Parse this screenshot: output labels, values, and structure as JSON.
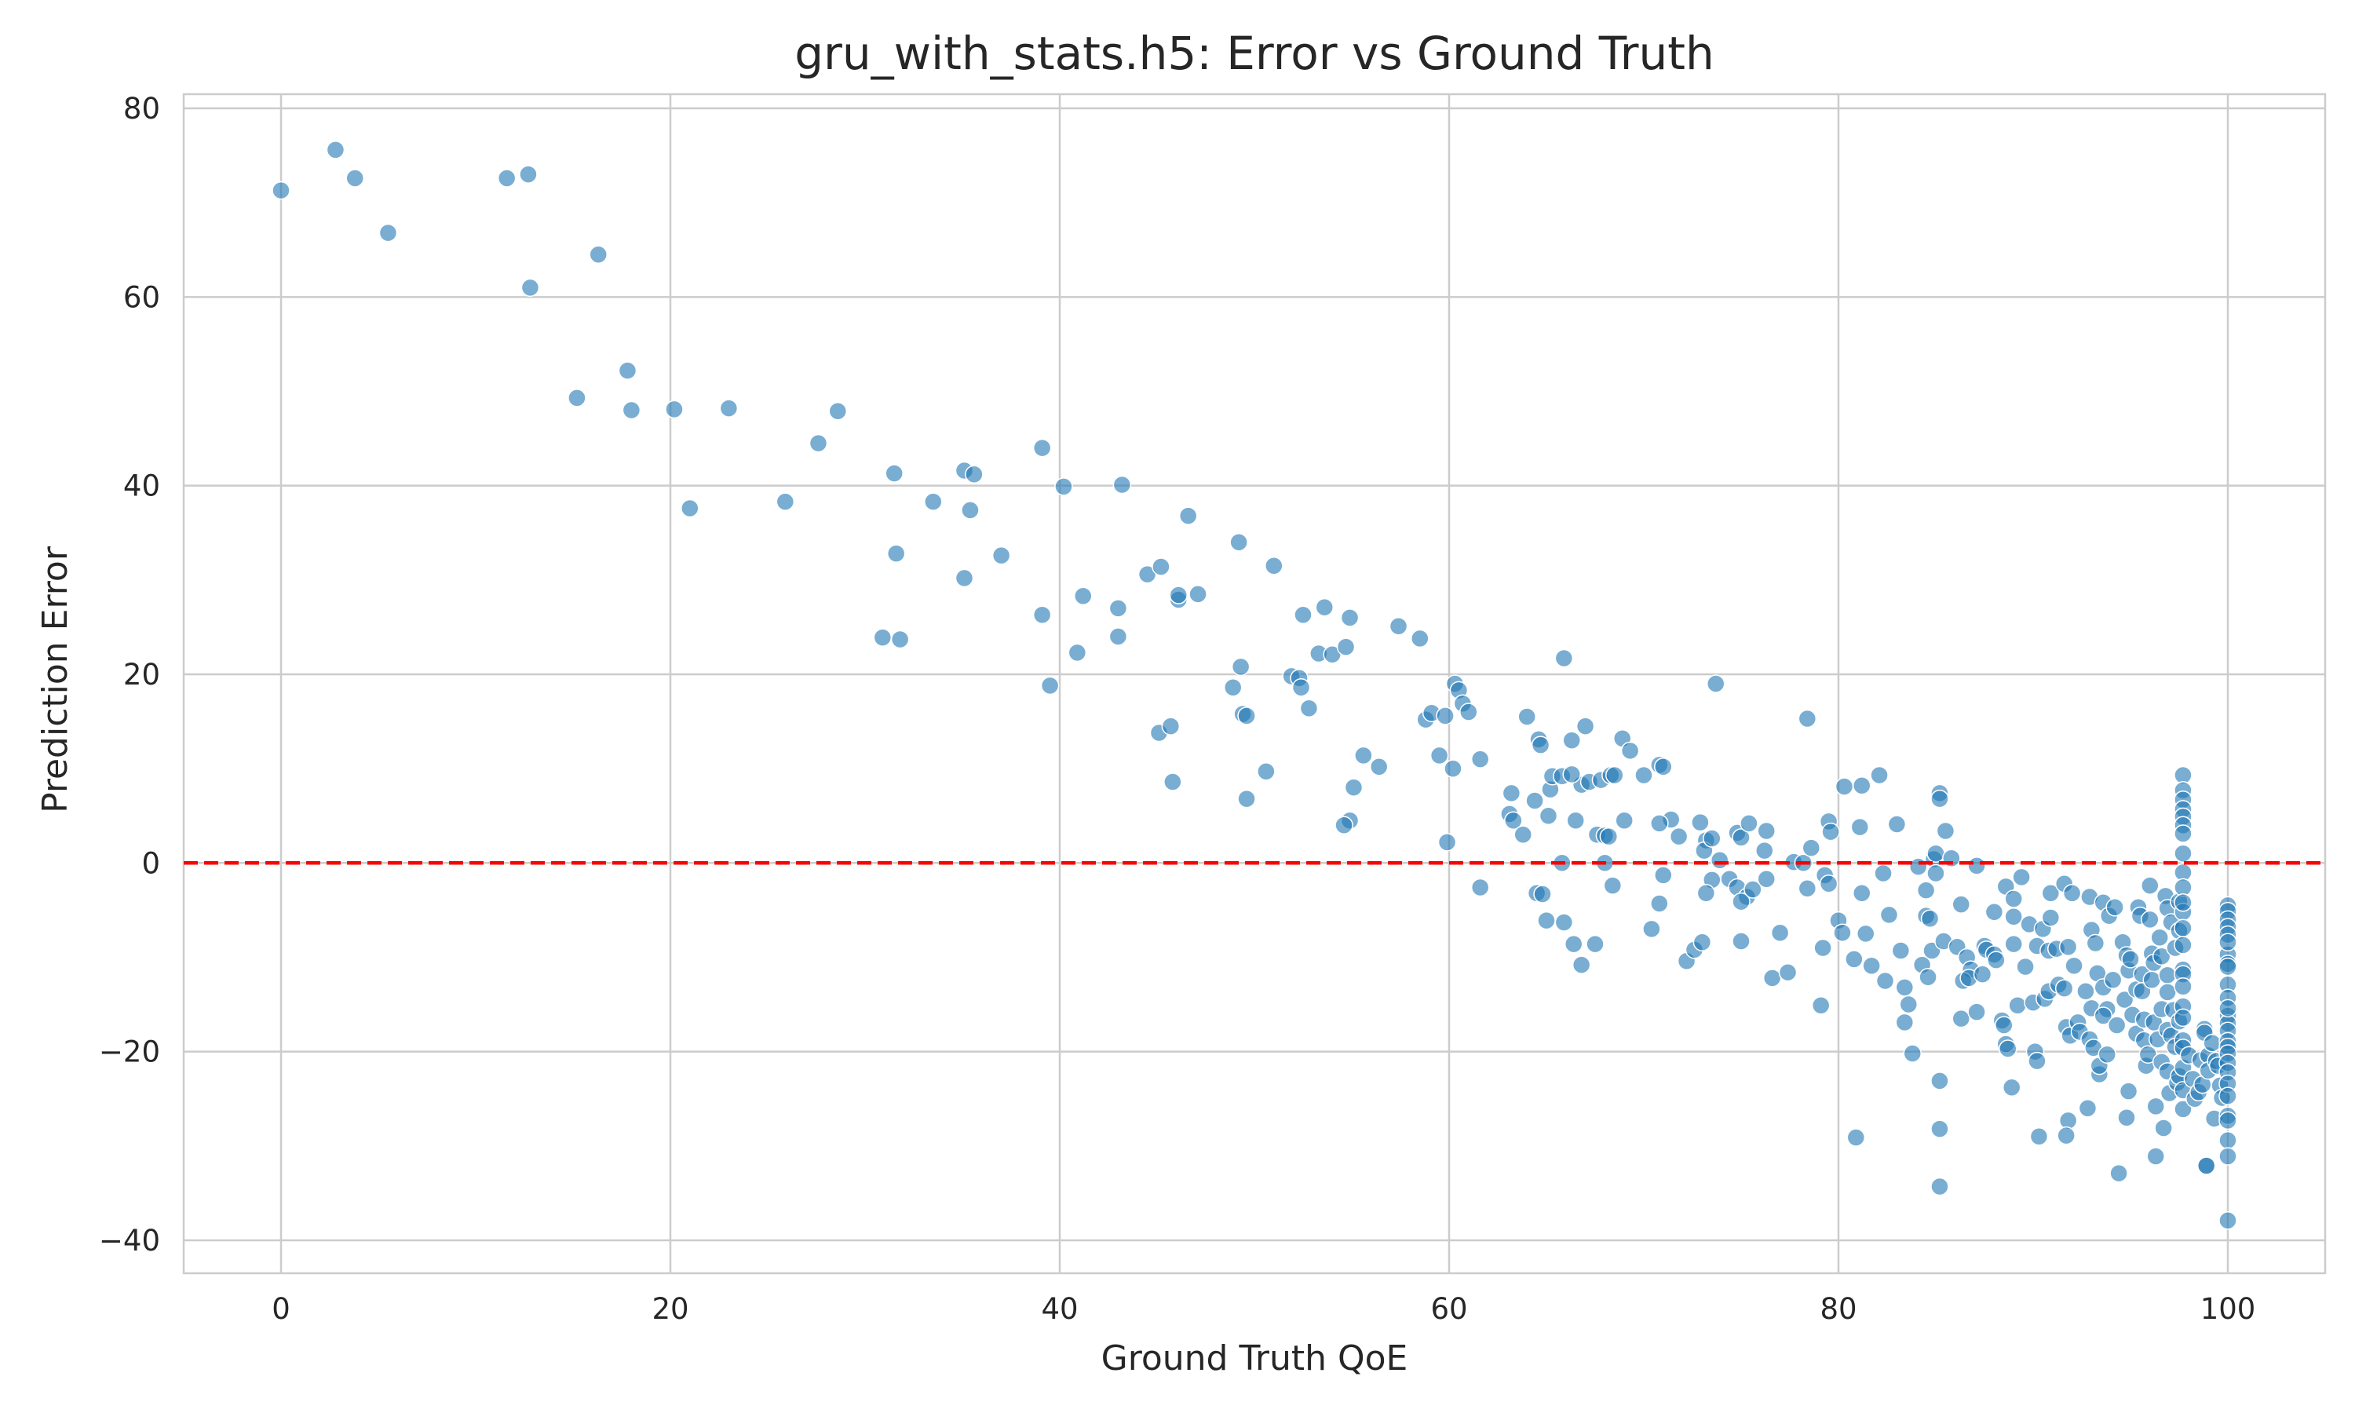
{
  "chart_data": {
    "type": "scatter",
    "title": "gru_with_stats.h5: Error vs Ground Truth",
    "xlabel": "Ground Truth QoE",
    "ylabel": "Prediction Error",
    "xlim": [
      -5,
      105
    ],
    "ylim": [
      -43.5,
      81.5
    ],
    "xticks": [
      0,
      20,
      40,
      60,
      80,
      100
    ],
    "yticks": [
      -40,
      -20,
      0,
      20,
      40,
      60,
      80
    ],
    "xtick_labels": [
      "0",
      "20",
      "40",
      "60",
      "80",
      "100"
    ],
    "ytick_labels": [
      "−40",
      "−20",
      "0",
      "20",
      "40",
      "60",
      "80"
    ],
    "grid": true,
    "reference_line": {
      "y": 0,
      "style": "dashed",
      "color": "#ff0000"
    },
    "point_color": "#1f77b4",
    "points": [
      [
        0,
        71.3
      ],
      [
        2.8,
        75.6
      ],
      [
        3.8,
        72.6
      ],
      [
        5.5,
        66.8
      ],
      [
        11.6,
        72.6
      ],
      [
        12.7,
        73.0
      ],
      [
        12.8,
        61.0
      ],
      [
        16.3,
        64.5
      ],
      [
        15.2,
        49.3
      ],
      [
        17.8,
        52.2
      ],
      [
        18.0,
        48.0
      ],
      [
        20.2,
        48.1
      ],
      [
        23.0,
        48.2
      ],
      [
        21.0,
        37.6
      ],
      [
        27.6,
        44.5
      ],
      [
        28.6,
        47.9
      ],
      [
        25.9,
        38.3
      ],
      [
        31.5,
        41.3
      ],
      [
        33.5,
        38.3
      ],
      [
        35.1,
        41.6
      ],
      [
        35.6,
        41.2
      ],
      [
        35.4,
        37.4
      ],
      [
        31.6,
        32.8
      ],
      [
        35.1,
        30.2
      ],
      [
        37.0,
        32.6
      ],
      [
        30.9,
        23.9
      ],
      [
        31.8,
        23.7
      ],
      [
        39.1,
        44.0
      ],
      [
        40.2,
        39.9
      ],
      [
        43.2,
        40.1
      ],
      [
        46.6,
        36.8
      ],
      [
        39.1,
        26.3
      ],
      [
        39.5,
        18.8
      ],
      [
        41.2,
        28.3
      ],
      [
        40.9,
        22.3
      ],
      [
        43.0,
        27.0
      ],
      [
        43.0,
        24.0
      ],
      [
        44.5,
        30.6
      ],
      [
        45.2,
        31.4
      ],
      [
        46.1,
        27.9
      ],
      [
        46.1,
        28.4
      ],
      [
        47.1,
        28.5
      ],
      [
        45.1,
        13.8
      ],
      [
        45.7,
        14.5
      ],
      [
        45.8,
        8.6
      ],
      [
        49.2,
        34.0
      ],
      [
        51.0,
        31.5
      ],
      [
        49.3,
        20.8
      ],
      [
        48.9,
        18.6
      ],
      [
        49.4,
        15.8
      ],
      [
        49.6,
        15.6
      ],
      [
        49.6,
        6.8
      ],
      [
        50.6,
        9.7
      ],
      [
        51.9,
        19.8
      ],
      [
        52.3,
        19.6
      ],
      [
        52.4,
        18.6
      ],
      [
        52.5,
        26.3
      ],
      [
        53.6,
        27.1
      ],
      [
        53.3,
        22.2
      ],
      [
        54.0,
        22.1
      ],
      [
        54.7,
        22.9
      ],
      [
        54.9,
        26.0
      ],
      [
        52.8,
        16.4
      ],
      [
        55.6,
        11.4
      ],
      [
        55.1,
        8.0
      ],
      [
        56.4,
        10.2
      ],
      [
        54.9,
        4.5
      ],
      [
        54.6,
        4.0
      ],
      [
        57.4,
        25.1
      ],
      [
        58.5,
        23.8
      ],
      [
        58.8,
        15.2
      ],
      [
        59.1,
        15.9
      ],
      [
        59.8,
        15.6
      ],
      [
        60.3,
        19.0
      ],
      [
        60.5,
        18.3
      ],
      [
        60.7,
        16.9
      ],
      [
        61.0,
        16.0
      ],
      [
        59.5,
        11.4
      ],
      [
        61.6,
        11.0
      ],
      [
        60.2,
        10.0
      ],
      [
        59.9,
        2.2
      ],
      [
        61.6,
        -2.6
      ],
      [
        63.2,
        7.4
      ],
      [
        63.1,
        5.2
      ],
      [
        63.3,
        4.5
      ],
      [
        63.8,
        3.0
      ],
      [
        64.0,
        15.5
      ],
      [
        64.6,
        13.1
      ],
      [
        64.7,
        12.5
      ],
      [
        64.4,
        6.6
      ],
      [
        65.2,
        7.8
      ],
      [
        65.3,
        9.2
      ],
      [
        65.1,
        5.0
      ],
      [
        64.5,
        -3.2
      ],
      [
        64.8,
        -3.3
      ],
      [
        65.0,
        -6.1
      ],
      [
        65.9,
        21.7
      ],
      [
        66.3,
        13.0
      ],
      [
        66.5,
        4.5
      ],
      [
        67.0,
        14.5
      ],
      [
        66.8,
        8.3
      ],
      [
        65.8,
        9.2
      ],
      [
        66.3,
        9.4
      ],
      [
        67.2,
        8.6
      ],
      [
        67.8,
        8.8
      ],
      [
        68.3,
        9.3
      ],
      [
        68.5,
        9.3
      ],
      [
        67.6,
        3.0
      ],
      [
        68.0,
        2.9
      ],
      [
        68.2,
        2.8
      ],
      [
        65.8,
        0.0
      ],
      [
        68.0,
        0.0
      ],
      [
        66.4,
        -8.6
      ],
      [
        66.8,
        -10.8
      ],
      [
        67.5,
        -8.6
      ],
      [
        68.4,
        -2.4
      ],
      [
        65.9,
        -6.3
      ],
      [
        68.9,
        13.2
      ],
      [
        69.3,
        11.9
      ],
      [
        70.0,
        9.3
      ],
      [
        69.0,
        4.5
      ],
      [
        70.8,
        10.4
      ],
      [
        71.0,
        10.2
      ],
      [
        71.4,
        4.6
      ],
      [
        70.8,
        4.2
      ],
      [
        71.8,
        2.8
      ],
      [
        71.0,
        -1.3
      ],
      [
        70.8,
        -4.3
      ],
      [
        70.4,
        -7.0
      ],
      [
        72.9,
        4.3
      ],
      [
        72.2,
        -10.4
      ],
      [
        72.6,
        -9.2
      ],
      [
        73.2,
        2.4
      ],
      [
        73.0,
        -8.4
      ],
      [
        73.1,
        1.3
      ],
      [
        73.5,
        2.6
      ],
      [
        73.7,
        19.0
      ],
      [
        73.9,
        0.3
      ],
      [
        73.5,
        -1.8
      ],
      [
        73.2,
        -3.2
      ],
      [
        74.4,
        -1.7
      ],
      [
        74.8,
        3.2
      ],
      [
        75.0,
        2.7
      ],
      [
        75.4,
        4.2
      ],
      [
        74.8,
        -2.6
      ],
      [
        75.3,
        -3.6
      ],
      [
        75.0,
        -4.1
      ],
      [
        75.6,
        -2.8
      ],
      [
        75.0,
        -8.3
      ],
      [
        76.2,
        1.3
      ],
      [
        76.3,
        3.4
      ],
      [
        76.3,
        -1.7
      ],
      [
        76.6,
        -12.2
      ],
      [
        77.0,
        -7.4
      ],
      [
        77.4,
        -11.6
      ],
      [
        77.7,
        0.1
      ],
      [
        78.2,
        0.0
      ],
      [
        78.4,
        15.3
      ],
      [
        78.4,
        -2.7
      ],
      [
        78.6,
        1.6
      ],
      [
        79.5,
        4.4
      ],
      [
        79.6,
        3.3
      ],
      [
        79.3,
        -1.3
      ],
      [
        79.5,
        -2.2
      ],
      [
        79.2,
        -9.0
      ],
      [
        79.1,
        -15.1
      ],
      [
        80.3,
        8.1
      ],
      [
        81.2,
        8.2
      ],
      [
        81.1,
        3.8
      ],
      [
        80.0,
        -6.1
      ],
      [
        80.2,
        -7.4
      ],
      [
        81.2,
        -3.2
      ],
      [
        80.8,
        -10.2
      ],
      [
        81.7,
        -10.9
      ],
      [
        81.4,
        -7.5
      ],
      [
        82.1,
        9.3
      ],
      [
        82.3,
        -1.1
      ],
      [
        82.4,
        -12.5
      ],
      [
        82.6,
        -5.5
      ],
      [
        80.9,
        -29.1
      ],
      [
        83.0,
        4.1
      ],
      [
        83.2,
        -9.3
      ],
      [
        83.4,
        -13.2
      ],
      [
        83.4,
        -16.9
      ],
      [
        83.8,
        -20.2
      ],
      [
        83.6,
        -15.0
      ],
      [
        84.1,
        -0.4
      ],
      [
        84.3,
        -10.8
      ],
      [
        84.5,
        -2.9
      ],
      [
        84.5,
        -5.6
      ],
      [
        84.9,
        0.4
      ],
      [
        85.0,
        1.0
      ],
      [
        85.0,
        -1.1
      ],
      [
        84.7,
        -5.9
      ],
      [
        84.8,
        -9.3
      ],
      [
        85.2,
        7.4
      ],
      [
        85.2,
        6.8
      ],
      [
        85.5,
        3.4
      ],
      [
        85.4,
        -8.3
      ],
      [
        84.6,
        -12.1
      ],
      [
        85.2,
        -23.1
      ],
      [
        85.2,
        -28.2
      ],
      [
        85.2,
        -34.3
      ],
      [
        85.8,
        0.5
      ],
      [
        86.1,
        -8.9
      ],
      [
        86.3,
        -4.4
      ],
      [
        86.6,
        -10.0
      ],
      [
        86.8,
        -11.3
      ],
      [
        86.4,
        -12.5
      ],
      [
        86.3,
        -16.5
      ],
      [
        86.7,
        -12.2
      ],
      [
        87.1,
        -0.3
      ],
      [
        87.5,
        -8.8
      ],
      [
        87.4,
        -11.8
      ],
      [
        87.1,
        -15.8
      ],
      [
        87.6,
        -9.2
      ],
      [
        88.0,
        -5.2
      ],
      [
        88.0,
        -9.7
      ],
      [
        88.1,
        -10.3
      ],
      [
        88.4,
        -16.7
      ],
      [
        88.5,
        -17.2
      ],
      [
        88.6,
        -19.2
      ],
      [
        88.7,
        -19.7
      ],
      [
        88.6,
        -2.5
      ],
      [
        89.0,
        -3.8
      ],
      [
        89.0,
        -5.7
      ],
      [
        89.0,
        -8.6
      ],
      [
        89.2,
        -15.1
      ],
      [
        88.9,
        -23.8
      ],
      [
        89.4,
        -1.5
      ],
      [
        89.8,
        -6.5
      ],
      [
        89.6,
        -11.0
      ],
      [
        90.0,
        -14.8
      ],
      [
        90.2,
        -8.8
      ],
      [
        90.1,
        -20.0
      ],
      [
        90.2,
        -21.0
      ],
      [
        90.3,
        -29.0
      ],
      [
        90.5,
        -7.0
      ],
      [
        90.8,
        -9.3
      ],
      [
        90.6,
        -14.4
      ],
      [
        90.8,
        -13.6
      ],
      [
        90.9,
        -5.8
      ],
      [
        90.9,
        -3.2
      ],
      [
        91.2,
        -9.1
      ],
      [
        91.3,
        -12.9
      ],
      [
        91.6,
        -13.3
      ],
      [
        91.6,
        -2.2
      ],
      [
        91.8,
        -8.9
      ],
      [
        91.7,
        -17.4
      ],
      [
        91.9,
        -18.3
      ],
      [
        92.0,
        -3.2
      ],
      [
        92.1,
        -10.9
      ],
      [
        91.8,
        -27.3
      ],
      [
        91.7,
        -28.9
      ],
      [
        92.3,
        -16.9
      ],
      [
        92.4,
        -17.9
      ],
      [
        92.7,
        -13.6
      ],
      [
        92.9,
        -18.7
      ],
      [
        92.8,
        -26.0
      ],
      [
        92.9,
        -3.6
      ],
      [
        93.0,
        -7.1
      ],
      [
        93.0,
        -15.4
      ],
      [
        93.1,
        -19.6
      ],
      [
        93.3,
        -11.7
      ],
      [
        93.2,
        -8.5
      ],
      [
        93.4,
        -22.4
      ],
      [
        93.4,
        -21.5
      ],
      [
        93.6,
        -4.2
      ],
      [
        93.6,
        -13.2
      ],
      [
        93.8,
        -15.5
      ],
      [
        93.6,
        -16.2
      ],
      [
        93.8,
        -20.3
      ],
      [
        93.9,
        -5.6
      ],
      [
        94.2,
        -4.7
      ],
      [
        94.1,
        -12.4
      ],
      [
        94.3,
        -17.2
      ],
      [
        94.4,
        -32.9
      ],
      [
        94.6,
        -8.4
      ],
      [
        94.8,
        -9.8
      ],
      [
        94.9,
        -11.4
      ],
      [
        94.7,
        -14.5
      ],
      [
        94.9,
        -24.2
      ],
      [
        94.8,
        -27.0
      ],
      [
        95.0,
        -10.2
      ],
      [
        95.3,
        -13.4
      ],
      [
        95.1,
        -16.1
      ],
      [
        95.3,
        -18.1
      ],
      [
        95.4,
        -4.7
      ],
      [
        95.5,
        -5.6
      ],
      [
        95.6,
        -11.8
      ],
      [
        95.6,
        -13.6
      ],
      [
        95.7,
        -16.6
      ],
      [
        95.7,
        -18.8
      ],
      [
        95.8,
        -21.5
      ],
      [
        95.9,
        -20.3
      ],
      [
        96.0,
        -2.4
      ],
      [
        96.0,
        -6.0
      ],
      [
        96.1,
        -9.6
      ],
      [
        96.2,
        -10.6
      ],
      [
        96.1,
        -12.4
      ],
      [
        96.2,
        -16.9
      ],
      [
        96.4,
        -18.7
      ],
      [
        96.3,
        -31.1
      ],
      [
        96.3,
        -25.8
      ],
      [
        96.5,
        -7.9
      ],
      [
        96.6,
        -9.9
      ],
      [
        96.6,
        -15.5
      ],
      [
        96.6,
        -21.1
      ],
      [
        96.7,
        -28.1
      ],
      [
        96.8,
        -3.5
      ],
      [
        96.9,
        -4.8
      ],
      [
        96.9,
        -11.9
      ],
      [
        96.9,
        -13.7
      ],
      [
        96.9,
        -17.7
      ],
      [
        96.9,
        -22.1
      ],
      [
        97.0,
        -24.4
      ],
      [
        97.1,
        -6.3
      ],
      [
        97.1,
        -18.3
      ],
      [
        97.2,
        -15.6
      ],
      [
        97.3,
        -9.0
      ],
      [
        97.3,
        -19.5
      ],
      [
        97.4,
        -23.3
      ],
      [
        97.5,
        -4.1
      ],
      [
        97.5,
        -7.2
      ],
      [
        97.5,
        -16.8
      ],
      [
        97.5,
        -22.6
      ],
      [
        97.7,
        9.3
      ],
      [
        97.7,
        7.7
      ],
      [
        97.7,
        6.7
      ],
      [
        97.7,
        5.7
      ],
      [
        97.7,
        4.9
      ],
      [
        97.7,
        4.0
      ],
      [
        97.7,
        3.1
      ],
      [
        97.7,
        -1.0
      ],
      [
        97.7,
        -2.6
      ],
      [
        97.7,
        -5.2
      ],
      [
        97.7,
        -8.7
      ],
      [
        97.7,
        -11.3
      ],
      [
        97.7,
        -11.8
      ],
      [
        97.7,
        -13.1
      ],
      [
        97.7,
        -15.2
      ],
      [
        97.7,
        -16.4
      ],
      [
        97.7,
        -18.8
      ],
      [
        97.7,
        -19.6
      ],
      [
        97.7,
        -21.7
      ],
      [
        97.7,
        -24.1
      ],
      [
        97.7,
        -26.1
      ],
      [
        97.7,
        -4.2
      ],
      [
        97.7,
        -6.9
      ],
      [
        97.7,
        1.0
      ],
      [
        98.0,
        -20.4
      ],
      [
        98.2,
        -22.9
      ],
      [
        98.3,
        -25.0
      ],
      [
        98.5,
        -24.3
      ],
      [
        98.6,
        -20.9
      ],
      [
        98.7,
        -23.5
      ],
      [
        98.8,
        -17.6
      ],
      [
        98.8,
        -18.0
      ],
      [
        98.9,
        -32.1
      ],
      [
        98.9,
        -32.1
      ],
      [
        99.0,
        -20.4
      ],
      [
        99.0,
        -22.0
      ],
      [
        99.2,
        -19.1
      ],
      [
        99.3,
        -27.1
      ],
      [
        99.4,
        -21.0
      ],
      [
        99.5,
        -21.5
      ],
      [
        99.6,
        -23.6
      ],
      [
        99.7,
        -24.9
      ],
      [
        100,
        -4.5
      ],
      [
        100,
        -5.1
      ],
      [
        100,
        -6.0
      ],
      [
        100,
        -6.8
      ],
      [
        100,
        -7.6
      ],
      [
        100,
        -9.7
      ],
      [
        100,
        -10.7
      ],
      [
        100,
        -11.0
      ],
      [
        100,
        -12.9
      ],
      [
        100,
        -14.3
      ],
      [
        100,
        -16.2
      ],
      [
        100,
        -17.0
      ],
      [
        100,
        -17.8
      ],
      [
        100,
        -18.9
      ],
      [
        100,
        -19.5
      ],
      [
        100,
        -20.2
      ],
      [
        100,
        -21.2
      ],
      [
        100,
        -22.2
      ],
      [
        100,
        -23.4
      ],
      [
        100,
        -24.7
      ],
      [
        100,
        -26.8
      ],
      [
        100,
        -27.3
      ],
      [
        100,
        -29.4
      ],
      [
        100,
        -31.1
      ],
      [
        100,
        -37.9
      ],
      [
        100,
        -15.4
      ],
      [
        100,
        -8.4
      ]
    ]
  }
}
